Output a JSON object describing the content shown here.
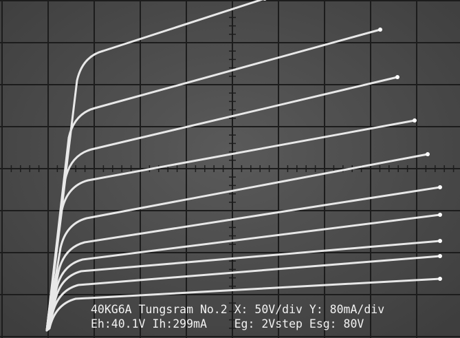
{
  "screen": {
    "caption_line_1": "40KG6A Tungsram No.2 X: 50V/div Y: 80mA/div",
    "caption_line_2": "Eh:40.1V Ih:299mA    Eg: 2Vstep Esg: 80V"
  }
}
